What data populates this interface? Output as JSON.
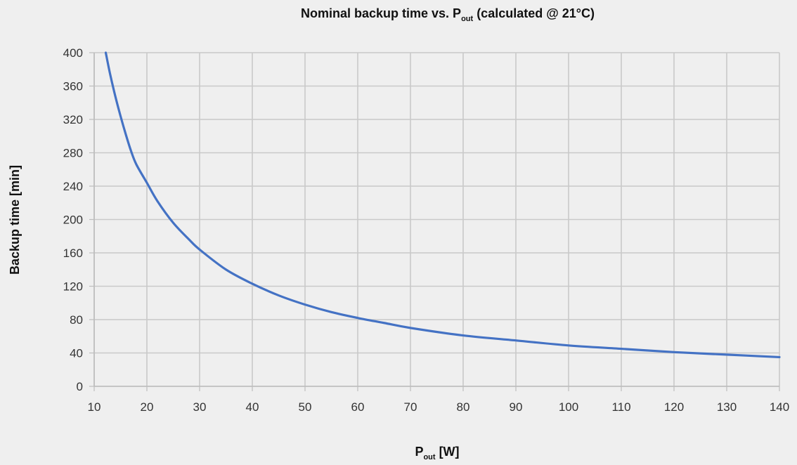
{
  "chart_data": {
    "type": "line",
    "title": {
      "main": "Nominal backup time vs. P",
      "sub": "out",
      "rest": " (calculated @ 21°C)"
    },
    "xlabel": {
      "main": "P",
      "sub": "out",
      "rest": " [W]"
    },
    "ylabel": "Backup time [min]",
    "xlim": [
      10,
      140
    ],
    "ylim": [
      0,
      400
    ],
    "x_ticks": [
      10,
      20,
      30,
      40,
      50,
      60,
      70,
      80,
      90,
      100,
      110,
      120,
      130,
      140
    ],
    "y_ticks": [
      0,
      40,
      80,
      120,
      160,
      200,
      240,
      280,
      320,
      360,
      400
    ],
    "grid": true,
    "series": [
      {
        "color": "#4472c4",
        "x": [
          12.2,
          13,
          14,
          15,
          16,
          17,
          18,
          20,
          22,
          25,
          28,
          30,
          35,
          40,
          45,
          50,
          55,
          60,
          65,
          70,
          80,
          90,
          100,
          110,
          120,
          130,
          140
        ],
        "y": [
          400,
          375,
          348,
          324,
          302,
          282,
          266,
          244,
          222,
          196,
          176,
          164,
          140,
          123,
          109,
          98,
          89,
          82,
          76,
          70,
          61,
          55,
          49,
          45,
          41,
          38,
          35
        ]
      }
    ]
  }
}
